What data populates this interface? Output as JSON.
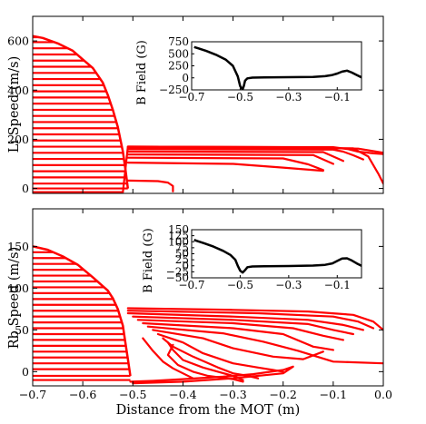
{
  "chart_data": [
    {
      "type": "line",
      "ylabel": "Li Speed (m/s)",
      "xlim": [
        -0.7,
        0.0
      ],
      "ylim": [
        -20,
        700
      ],
      "yticks": [
        0,
        200,
        400,
        600
      ],
      "xticks": [
        -0.7,
        -0.6,
        -0.5,
        -0.4,
        -0.3,
        -0.2,
        -0.1,
        0.0
      ],
      "xtick_labels_shown": false,
      "color": "#ff0000",
      "envelope": {
        "x": [
          -0.7,
          -0.68,
          -0.65,
          -0.62,
          -0.6,
          -0.58,
          -0.56,
          -0.55,
          -0.54,
          -0.53,
          -0.52,
          -0.515,
          -0.51
        ],
        "y": [
          620,
          612,
          590,
          560,
          525,
          490,
          430,
          380,
          320,
          250,
          150,
          80,
          0
        ]
      },
      "decel_speeds": [
        0,
        20,
        45,
        70,
        95,
        120,
        145,
        170,
        195,
        220,
        245,
        270,
        295,
        320,
        345,
        370,
        395,
        420,
        445,
        470,
        495,
        520,
        545,
        570,
        595,
        615
      ],
      "trajectories": [
        {
          "x": [
            -0.7,
            -0.52,
            -0.51,
            -0.2,
            -0.05,
            0.0
          ],
          "y": [
            -15,
            -15,
            170,
            168,
            162,
            145
          ]
        },
        {
          "x": [
            -0.51,
            -0.1,
            -0.07,
            -0.05,
            -0.02,
            0.0
          ],
          "y": [
            170,
            168,
            160,
            150,
            143,
            140
          ]
        },
        {
          "x": [
            -0.51,
            -0.1,
            -0.08,
            -0.06,
            -0.04
          ],
          "y": [
            160,
            158,
            150,
            135,
            118
          ]
        },
        {
          "x": [
            -0.51,
            -0.12,
            -0.1,
            -0.08
          ],
          "y": [
            150,
            148,
            130,
            112
          ]
        },
        {
          "x": [
            -0.51,
            -0.14,
            -0.12,
            -0.1
          ],
          "y": [
            138,
            136,
            118,
            100
          ]
        },
        {
          "x": [
            -0.51,
            -0.06,
            -0.03,
            -0.01,
            0.0
          ],
          "y": [
            165,
            163,
            130,
            60,
            20
          ]
        },
        {
          "x": [
            -0.51,
            -0.2,
            -0.15,
            -0.12
          ],
          "y": [
            125,
            122,
            98,
            75
          ]
        },
        {
          "x": [
            -0.51,
            -0.3,
            -0.2,
            -0.12
          ],
          "y": [
            105,
            100,
            85,
            72
          ]
        },
        {
          "x": [
            -0.51,
            -0.45,
            -0.43,
            -0.42,
            -0.42
          ],
          "y": [
            32,
            30,
            24,
            10,
            -12
          ]
        }
      ]
    },
    {
      "type": "line",
      "ylabel": "Rb Speed (m/s)",
      "xlabel": "Distance from the MOT (m)",
      "xlim": [
        -0.7,
        0.0
      ],
      "ylim": [
        -17,
        195
      ],
      "yticks": [
        0,
        50,
        100,
        150
      ],
      "xticks": [
        -0.7,
        -0.6,
        -0.5,
        -0.4,
        -0.3,
        -0.2,
        -0.1,
        0.0
      ],
      "xtick_labels": [
        "−0.7",
        "−0.6",
        "−0.5",
        "−0.4",
        "−0.3",
        "−0.2",
        "−0.1",
        "0.0"
      ],
      "color": "#ff0000",
      "envelope": {
        "x": [
          -0.7,
          -0.67,
          -0.64,
          -0.61,
          -0.58,
          -0.55,
          -0.54,
          -0.53,
          -0.52,
          -0.515,
          -0.51,
          -0.505
        ],
        "y": [
          150,
          146,
          138,
          128,
          113,
          97,
          88,
          75,
          55,
          35,
          15,
          -5
        ]
      },
      "decel_speeds": [
        -10,
        -5,
        3,
        10,
        17,
        24,
        31,
        38,
        45,
        52,
        59,
        66,
        73,
        80,
        87,
        94,
        101,
        108,
        115,
        122,
        129,
        136,
        143,
        150
      ],
      "trajectories": [
        {
          "x": [
            -0.51,
            -0.3,
            -0.15,
            -0.06,
            -0.02,
            0.0
          ],
          "y": [
            76,
            74,
            72,
            68,
            60,
            50
          ]
        },
        {
          "x": [
            -0.51,
            -0.25,
            -0.1,
            -0.05,
            -0.02
          ],
          "y": [
            73,
            70,
            66,
            60,
            52
          ]
        },
        {
          "x": [
            -0.51,
            -0.3,
            -0.15,
            -0.08,
            -0.04
          ],
          "y": [
            70,
            66,
            62,
            56,
            50
          ]
        },
        {
          "x": [
            -0.5,
            -0.3,
            -0.15,
            -0.1,
            -0.06
          ],
          "y": [
            66,
            62,
            57,
            50,
            45
          ]
        },
        {
          "x": [
            -0.49,
            -0.3,
            -0.18,
            -0.12,
            -0.08
          ],
          "y": [
            62,
            58,
            52,
            43,
            38
          ]
        },
        {
          "x": [
            -0.48,
            -0.3,
            -0.2,
            -0.14,
            -0.1
          ],
          "y": [
            58,
            52,
            45,
            30,
            26
          ]
        },
        {
          "x": [
            -0.47,
            -0.32,
            -0.24,
            -0.17,
            -0.1,
            0.0
          ],
          "y": [
            54,
            46,
            36,
            25,
            12,
            10
          ]
        },
        {
          "x": [
            -0.46,
            -0.36,
            -0.3,
            -0.22,
            -0.16,
            -0.12
          ],
          "y": [
            50,
            40,
            28,
            18,
            15,
            24
          ]
        },
        {
          "x": [
            -0.45,
            -0.4,
            -0.36,
            -0.3,
            -0.25,
            -0.22,
            -0.2
          ],
          "y": [
            45,
            35,
            22,
            10,
            5,
            2,
            0
          ]
        },
        {
          "x": [
            -0.44,
            -0.42,
            -0.38,
            -0.33,
            -0.3,
            -0.27,
            -0.25
          ],
          "y": [
            40,
            30,
            18,
            5,
            -2,
            -5,
            -8
          ]
        },
        {
          "x": [
            -0.43,
            -0.42,
            -0.4,
            -0.36,
            -0.33,
            -0.3,
            -0.28
          ],
          "y": [
            35,
            26,
            14,
            5,
            0,
            -5,
            -10
          ]
        },
        {
          "x": [
            -0.42,
            -0.43,
            -0.41,
            -0.38,
            -0.35,
            -0.3,
            -0.28
          ],
          "y": [
            32,
            20,
            8,
            0,
            -5,
            -9,
            -12
          ]
        },
        {
          "x": [
            -0.48,
            -0.46,
            -0.44,
            -0.42,
            -0.4,
            -0.38
          ],
          "y": [
            40,
            25,
            12,
            4,
            -2,
            -8
          ]
        },
        {
          "x": [
            -0.505,
            -0.46,
            -0.4,
            -0.32,
            -0.26,
            -0.2,
            -0.18,
            -0.2,
            -0.3,
            -0.4,
            -0.5
          ],
          "y": [
            -12,
            -11,
            -9,
            -6,
            -3,
            2,
            6,
            -2,
            -8,
            -12,
            -14
          ]
        }
      ]
    },
    {
      "type": "line",
      "ylabel": "B Field (G)",
      "xlim": [
        -0.7,
        0.0
      ],
      "ylim": [
        -250,
        750
      ],
      "yticks": [
        -250,
        0,
        250,
        500,
        750
      ],
      "xticks": [
        -0.7,
        -0.5,
        -0.3,
        -0.1
      ],
      "xtick_labels": [
        "−0.7",
        "−0.5",
        "−0.3",
        "−0.1"
      ],
      "color": "#000000",
      "x": [
        -0.69,
        -0.67,
        -0.64,
        -0.6,
        -0.56,
        -0.53,
        -0.51,
        -0.5,
        -0.49,
        -0.485,
        -0.48,
        -0.47,
        -0.45,
        -0.4,
        -0.3,
        -0.2,
        -0.15,
        -0.12,
        -0.1,
        -0.08,
        -0.06,
        -0.04,
        -0.02,
        0.0
      ],
      "y": [
        640,
        610,
        560,
        480,
        380,
        250,
        30,
        -170,
        -240,
        -170,
        -60,
        -10,
        5,
        10,
        15,
        20,
        35,
        60,
        90,
        130,
        150,
        110,
        60,
        10
      ]
    },
    {
      "type": "line",
      "ylabel": "B Field (G)",
      "xlim": [
        -0.7,
        0.0
      ],
      "ylim": [
        -50,
        150
      ],
      "yticks": [
        -50,
        -25,
        0,
        25,
        50,
        75,
        100,
        125,
        150
      ],
      "xticks": [
        -0.7,
        -0.5,
        -0.3,
        -0.1
      ],
      "xtick_labels": [
        "−0.7",
        "−0.5",
        "−0.3",
        "−0.1"
      ],
      "color": "#000000",
      "x": [
        -0.69,
        -0.68,
        -0.65,
        -0.61,
        -0.57,
        -0.54,
        -0.52,
        -0.51,
        -0.5,
        -0.49,
        -0.48,
        -0.47,
        -0.45,
        -0.4,
        -0.3,
        -0.2,
        -0.15,
        -0.12,
        -0.1,
        -0.08,
        -0.06,
        -0.04,
        -0.02,
        0.0
      ],
      "y": [
        108,
        104,
        94,
        80,
        62,
        45,
        25,
        0,
        -20,
        -28,
        -18,
        -6,
        -3,
        -2,
        -1,
        1,
        4,
        10,
        20,
        30,
        31,
        22,
        10,
        0
      ]
    }
  ]
}
